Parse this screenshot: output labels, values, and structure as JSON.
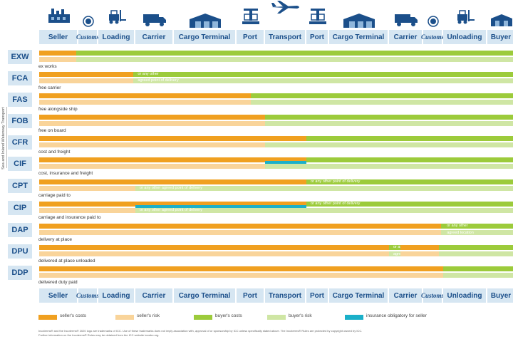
{
  "columns": [
    "Seller",
    "Customs",
    "Loading",
    "Carrier",
    "Cargo Terminal",
    "Port",
    "Transport",
    "Port",
    "Cargo Terminal",
    "Carrier",
    "Customs",
    "Unloading",
    "Buyer"
  ],
  "side_label": "Sea and Inland Waterway Transport",
  "terms": [
    {
      "code": "EXW",
      "desc": "ex works",
      "annotations": []
    },
    {
      "code": "FCA",
      "desc": "free carrier",
      "annotations": [
        "or any other",
        "agreed point of delivery"
      ]
    },
    {
      "code": "FAS",
      "desc": "free alongside ship",
      "annotations": []
    },
    {
      "code": "FOB",
      "desc": "free on board",
      "annotations": []
    },
    {
      "code": "CFR",
      "desc": "cost and freight",
      "annotations": []
    },
    {
      "code": "CIF",
      "desc": "cost, insurance and freight",
      "annotations": []
    },
    {
      "code": "CPT",
      "desc": "carriage paid to",
      "annotations": [
        "or any other agreed point of delivery",
        "or any other point of delivery"
      ]
    },
    {
      "code": "CIP",
      "desc": "carriage and insurance paid to",
      "annotations": [
        "or any other agreed point of delivery",
        "or any other point of delivery"
      ]
    },
    {
      "code": "DAP",
      "desc": "delivery at place",
      "annotations": [
        "or any other",
        "agreed location"
      ]
    },
    {
      "code": "DPU",
      "desc": "delivered at place unloaded",
      "annotations": [
        "or any other",
        "agreed location"
      ]
    },
    {
      "code": "DDP",
      "desc": "delivered duty paid",
      "annotations": []
    }
  ],
  "legend": [
    "seller's costs",
    "seller's risk",
    "buyer's costs",
    "buyer's risk",
    "insurance obligatory for seller"
  ],
  "footnote": [
    "Incoterms® and the Incoterms® 2020 logo are trademarks of ICC. Use of these trademarks does not imply association with, approval of or sponsorship by ICC unless specifically stated above. The Incoterms® Rules are protected by copyright owned by ICC.",
    "Further information on the Incoterms® Rules may be obtained from the ICC website iccwbo.org."
  ],
  "colors": {
    "sellers_costs": "#f0a020",
    "sellers_risk": "#f9d49a",
    "buyers_costs": "#9ccb3b",
    "buyers_risk": "#cfe6a4",
    "insurance": "#1bb0c9",
    "header_cell": "#d6e6f2",
    "header_text": "#1b4f8a"
  },
  "icons": [
    "factory-icon",
    "customs-stamp-icon",
    "forklift-icon",
    "truck-icon",
    "warehouse-icon",
    "port-crane-icon",
    "airplane-icon",
    "port-crane-icon",
    "warehouse-icon",
    "truck-icon",
    "customs-stamp-icon",
    "forklift-icon",
    "buyer-building-icon"
  ]
}
